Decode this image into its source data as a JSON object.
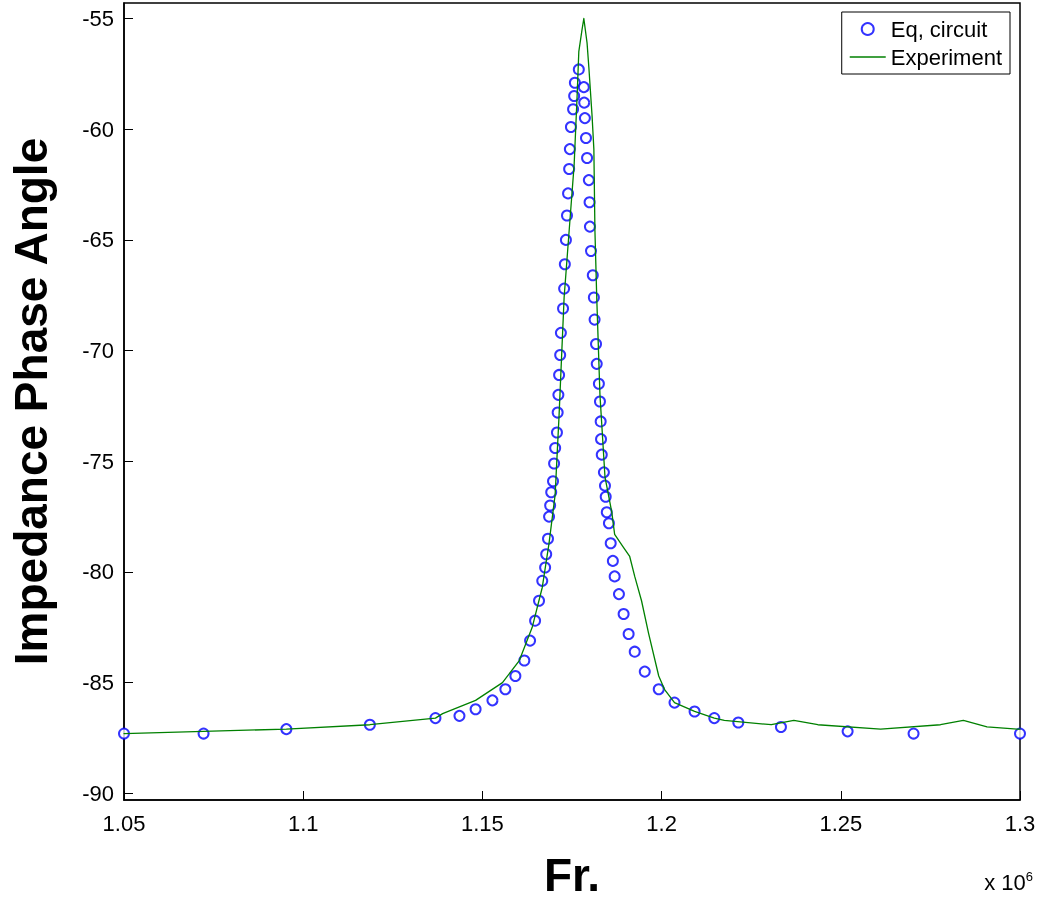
{
  "chart_data": {
    "type": "scatter",
    "xlabel": "Fr.",
    "ylabel": "Impedance Phase Angle",
    "annotations": [
      "x 10$^{6}$"
    ],
    "xlim": [
      1.05,
      1.3
    ],
    "xticks": [
      1.05,
      1.1,
      1.15,
      1.2,
      1.25,
      1.3
    ],
    "ylim": [
      -90.3,
      -54.3
    ],
    "yticks": [
      -90,
      -85,
      -80,
      -75,
      -70,
      -65,
      -60,
      -55
    ],
    "grid": false,
    "legend": "top right",
    "marker": "circle",
    "series": [
      {
        "name": "Eq, circuit",
        "color": "#0000ff",
        "x": [
          1.05,
          1.0722,
          1.0953,
          1.1186,
          1.1369,
          1.1436,
          1.1481,
          1.1528,
          1.1564,
          1.1592,
          1.1617,
          1.1633,
          1.1647,
          1.1658,
          1.1667,
          1.1675,
          1.1678,
          1.1683,
          1.1686,
          1.1689,
          1.1692,
          1.1697,
          1.17,
          1.1703,
          1.1708,
          1.171,
          1.1712,
          1.1714,
          1.1717,
          1.1719,
          1.1725,
          1.1728,
          1.173,
          1.1733,
          1.1736,
          1.1739,
          1.1742,
          1.1744,
          1.1747,
          1.1753,
          1.1756,
          1.1758,
          1.1769,
          1.1783,
          1.1784,
          1.1786,
          1.1789,
          1.1792,
          1.1797,
          1.1799,
          1.18,
          1.1803,
          1.1808,
          1.1811,
          1.1813,
          1.1817,
          1.1819,
          1.1825,
          1.1828,
          1.183,
          1.1831,
          1.1833,
          1.1839,
          1.1842,
          1.1844,
          1.1847,
          1.1853,
          1.1858,
          1.1864,
          1.1869,
          1.1881,
          1.1894,
          1.1908,
          1.1925,
          1.1953,
          1.1992,
          1.2036,
          1.2092,
          1.2147,
          1.2214,
          1.2333,
          1.2519,
          1.2703,
          1.3
        ],
        "values": [
          -87.3,
          -87.3,
          -87.1,
          -86.9,
          -86.6,
          -86.5,
          -86.2,
          -85.8,
          -85.3,
          -84.7,
          -84.0,
          -83.1,
          -82.2,
          -81.3,
          -80.4,
          -79.8,
          -79.2,
          -78.5,
          -77.5,
          -77.0,
          -76.4,
          -75.9,
          -75.1,
          -74.4,
          -73.7,
          -72.8,
          -72.0,
          -71.1,
          -70.2,
          -69.2,
          -68.1,
          -67.2,
          -66.1,
          -65.0,
          -63.9,
          -62.9,
          -61.8,
          -60.9,
          -59.9,
          -59.1,
          -58.5,
          -57.9,
          -57.3,
          -58.1,
          -58.8,
          -59.5,
          -60.4,
          -61.3,
          -62.3,
          -63.3,
          -64.4,
          -65.5,
          -66.6,
          -67.6,
          -68.6,
          -69.7,
          -70.6,
          -71.5,
          -72.3,
          -73.2,
          -74.0,
          -74.7,
          -75.5,
          -76.1,
          -76.6,
          -77.3,
          -77.8,
          -78.7,
          -79.5,
          -80.2,
          -81.0,
          -81.9,
          -82.8,
          -83.6,
          -84.5,
          -85.3,
          -85.9,
          -86.3,
          -86.6,
          -86.8,
          -87.0,
          -87.2,
          -87.3,
          -87.3
        ]
      },
      {
        "name": "Experiment",
        "type": "line",
        "marker": "none",
        "line_style": "solid",
        "color": "#008000",
        "x": [
          1.05,
          1.0722,
          1.0953,
          1.1186,
          1.1369,
          1.1389,
          1.1481,
          1.1556,
          1.1603,
          1.1639,
          1.1667,
          1.1686,
          1.1703,
          1.1714,
          1.1728,
          1.1742,
          1.1756,
          1.1764,
          1.1769,
          1.1778,
          1.1783,
          1.1792,
          1.1797,
          1.1806,
          1.1811,
          1.1814,
          1.1819,
          1.1828,
          1.1842,
          1.1861,
          1.1869,
          1.1894,
          1.1911,
          1.1925,
          1.1944,
          1.1964,
          1.1992,
          1.2008,
          1.2036,
          1.2092,
          1.2147,
          1.2175,
          1.2306,
          1.2369,
          1.2436,
          1.2611,
          1.2778,
          1.2842,
          1.2908,
          1.2992,
          1.3
        ],
        "values": [
          -87.3,
          -87.2,
          -87.1,
          -86.9,
          -86.6,
          -86.4,
          -85.8,
          -85.0,
          -84.0,
          -82.5,
          -80.7,
          -78.7,
          -76.5,
          -72.9,
          -67.6,
          -64.6,
          -61.6,
          -58.6,
          -56.5,
          -55.5,
          -55.0,
          -56.1,
          -57.2,
          -59.4,
          -60.9,
          -64.6,
          -67.6,
          -72.0,
          -75.7,
          -77.3,
          -78.3,
          -78.9,
          -79.3,
          -80.2,
          -81.3,
          -82.8,
          -84.7,
          -85.3,
          -85.9,
          -86.3,
          -86.6,
          -86.7,
          -86.9,
          -86.7,
          -86.9,
          -87.1,
          -86.9,
          -86.7,
          -87.0,
          -87.1,
          -87.1
        ]
      }
    ]
  }
}
